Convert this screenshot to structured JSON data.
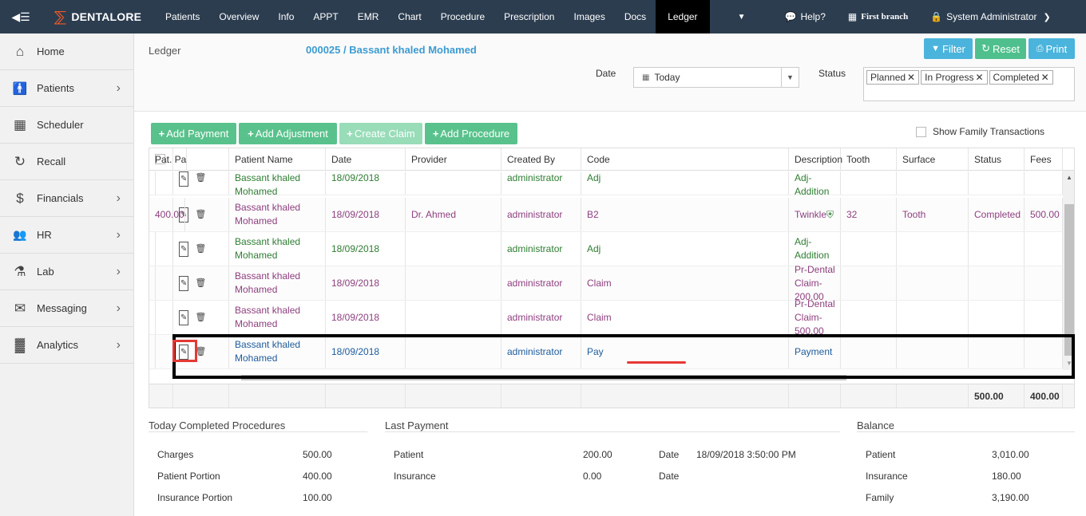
{
  "topnav": {
    "brand": "DENTALORE",
    "tabs": [
      "Patients",
      "Overview",
      "Info",
      "APPT",
      "EMR",
      "Chart",
      "Procedure",
      "Prescription",
      "Images",
      "Docs",
      "Ledger"
    ],
    "active_tab": "Ledger",
    "help": "Help?",
    "branch": "First branch",
    "user": "System Administrator"
  },
  "sidebar": {
    "items": [
      {
        "label": "Home",
        "icon": "home-icon",
        "chevron": false
      },
      {
        "label": "Patients",
        "icon": "person-icon",
        "chevron": true
      },
      {
        "label": "Scheduler",
        "icon": "calendar-icon",
        "chevron": false
      },
      {
        "label": "Recall",
        "icon": "refresh-icon",
        "chevron": false
      },
      {
        "label": "Financials",
        "icon": "dollar-icon",
        "chevron": true
      },
      {
        "label": "HR",
        "icon": "users-icon",
        "chevron": true
      },
      {
        "label": "Lab",
        "icon": "flask-icon",
        "chevron": true
      },
      {
        "label": "Messaging",
        "icon": "envelope-icon",
        "chevron": true
      },
      {
        "label": "Analytics",
        "icon": "bar-chart-icon",
        "chevron": true
      }
    ]
  },
  "header": {
    "title": "Ledger",
    "patient": "000025 / Bassant khaled Mohamed",
    "filter": "Filter",
    "reset": "Reset",
    "print": "Print",
    "date_label": "Date",
    "date_value": "Today",
    "status_label": "Status",
    "status_chips": [
      "Planned",
      "In Progress",
      "Completed"
    ]
  },
  "actions": {
    "add_payment": "Add Payment",
    "add_adjustment": "Add Adjustment",
    "create_claim": "Create Claim",
    "add_procedure": "Add Procedure",
    "family_toggle": "Show Family Transactions"
  },
  "grid": {
    "columns": [
      "Patient Name",
      "Date",
      "Provider",
      "Created By",
      "Code",
      "Description",
      "Tooth",
      "Surface",
      "Status",
      "Fees",
      "Pat. Pa"
    ],
    "rows": [
      {
        "name1": "Bassant khaled",
        "name2": "Mohamed",
        "date": "18/09/2018",
        "provider": "",
        "created_by": "administrator",
        "code": "Adj",
        "description": "Adj-Addition",
        "tooth": "",
        "surface": "",
        "status": "",
        "fees": "",
        "pat": "",
        "color": "green"
      },
      {
        "name1": "Bassant khaled",
        "name2": "Mohamed",
        "date": "18/09/2018",
        "provider": "Dr. Ahmed",
        "created_by": "administrator",
        "code": "B2",
        "description": "Twinkle",
        "tooth": "32",
        "surface": "Tooth",
        "status": "Completed",
        "fees": "500.00",
        "pat": "400.00",
        "color": "purple"
      },
      {
        "name1": "Bassant khaled",
        "name2": "Mohamed",
        "date": "18/09/2018",
        "provider": "",
        "created_by": "administrator",
        "code": "Adj",
        "description": "Adj-Addition",
        "tooth": "",
        "surface": "",
        "status": "",
        "fees": "",
        "pat": "",
        "color": "green"
      },
      {
        "name1": "Bassant khaled",
        "name2": "Mohamed",
        "date": "18/09/2018",
        "provider": "",
        "created_by": "administrator",
        "code": "Claim",
        "description": "Pr-Dental Claim-200.00",
        "tooth": "",
        "surface": "",
        "status": "",
        "fees": "",
        "pat": "",
        "color": "purple"
      },
      {
        "name1": "Bassant khaled",
        "name2": "Mohamed",
        "date": "18/09/2018",
        "provider": "",
        "created_by": "administrator",
        "code": "Claim",
        "description": "Pr-Dental Claim-500.00",
        "tooth": "",
        "surface": "",
        "status": "",
        "fees": "",
        "pat": "",
        "color": "purple"
      },
      {
        "name1": "Bassant khaled",
        "name2": "Mohamed",
        "date": "18/09/2018",
        "provider": "",
        "created_by": "administrator",
        "code": "Pay",
        "description": "Payment",
        "tooth": "",
        "surface": "",
        "status": "",
        "fees": "",
        "pat": "",
        "color": "blue"
      }
    ],
    "footer": {
      "fees": "500.00",
      "pat": "400.00"
    }
  },
  "summary": {
    "today": {
      "title": "Today Completed Procedures",
      "rows": [
        {
          "label": "Charges",
          "value": "500.00"
        },
        {
          "label": "Patient Portion",
          "value": "400.00"
        },
        {
          "label": "Insurance Portion",
          "value": "100.00"
        }
      ]
    },
    "last_payment": {
      "title": "Last Payment",
      "rows": [
        {
          "label": "Patient",
          "value": "200.00",
          "date_label": "Date",
          "date_value": "18/09/2018 3:50:00 PM"
        },
        {
          "label": "Insurance",
          "value": "0.00",
          "date_label": "Date",
          "date_value": ""
        }
      ]
    },
    "balance": {
      "title": "Balance",
      "rows": [
        {
          "label": "Patient",
          "value": "3,010.00"
        },
        {
          "label": "Insurance",
          "value": "180.00"
        },
        {
          "label": "Family",
          "value": "3,190.00"
        }
      ]
    }
  }
}
